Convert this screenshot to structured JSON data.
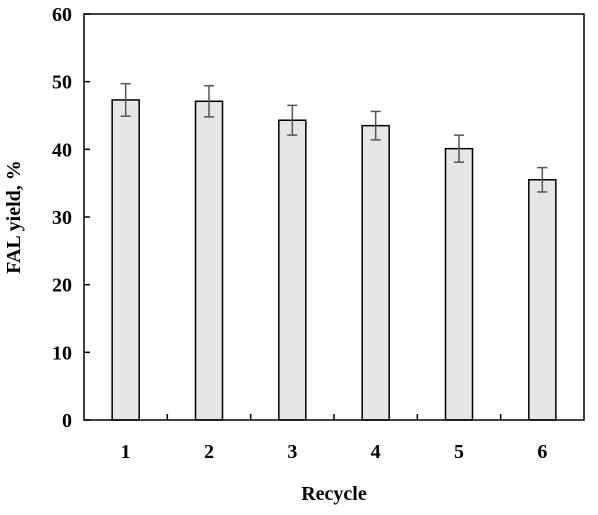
{
  "chart_data": {
    "type": "bar",
    "categories": [
      "1",
      "2",
      "3",
      "4",
      "5",
      "6"
    ],
    "values": [
      47.3,
      47.1,
      44.3,
      43.5,
      40.1,
      35.5
    ],
    "errors": [
      2.4,
      2.3,
      2.2,
      2.1,
      2.0,
      1.8
    ],
    "xlabel": "Recycle",
    "ylabel": "FAL yield, %",
    "ylim": [
      0,
      60
    ],
    "yticks": [
      0,
      10,
      20,
      30,
      40,
      50,
      60
    ],
    "grid": false,
    "legend": "none",
    "colors": {
      "bar_fill": "#e6e6e6",
      "bar_stroke": "#000000",
      "error_bar": "#555555",
      "axis": "#000000"
    }
  }
}
